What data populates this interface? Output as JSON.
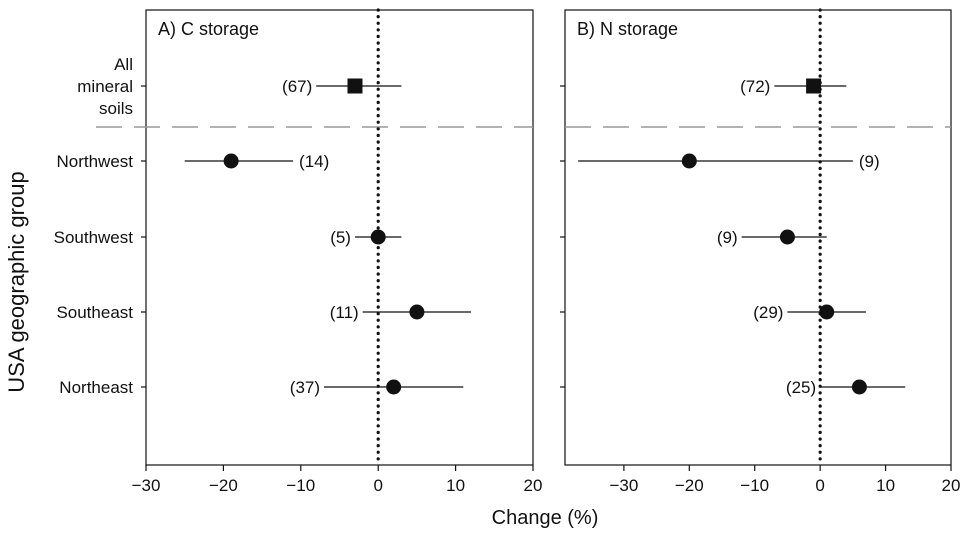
{
  "figure": {
    "ylabel": "USA geographic group",
    "xlabel": "Change (%)"
  },
  "colors": {
    "ink": "#111111",
    "reference_line": "#111111",
    "separator_line": "#999999"
  },
  "chart_data": [
    {
      "type": "scatter",
      "panel_title": "A) C storage",
      "xlim": [
        -30,
        20
      ],
      "x_ticks": [
        "−30",
        "−20",
        "−10",
        "0",
        "10",
        "20"
      ],
      "x_tick_values": [
        -30,
        -20,
        -10,
        0,
        10,
        20
      ],
      "reference_line_x": 0,
      "separator_below_first_row": true,
      "rows": [
        {
          "label_lines": [
            "All",
            "mineral",
            "soils"
          ],
          "mean": -3,
          "ci": [
            -8,
            3
          ],
          "n_label": "(67)",
          "n_side": "left",
          "marker": "square"
        },
        {
          "label_lines": [
            "Northwest"
          ],
          "mean": -19,
          "ci": [
            -25,
            -11
          ],
          "n_label": "(14)",
          "n_side": "right",
          "marker": "circle"
        },
        {
          "label_lines": [
            "Southwest"
          ],
          "mean": 0,
          "ci": [
            -3,
            3
          ],
          "n_label": "(5)",
          "n_side": "left",
          "marker": "circle"
        },
        {
          "label_lines": [
            "Southeast"
          ],
          "mean": 5,
          "ci": [
            -2,
            12
          ],
          "n_label": "(11)",
          "n_side": "left",
          "marker": "circle"
        },
        {
          "label_lines": [
            "Northeast"
          ],
          "mean": 2,
          "ci": [
            -7,
            11
          ],
          "n_label": "(37)",
          "n_side": "left",
          "marker": "circle"
        }
      ]
    },
    {
      "type": "scatter",
      "panel_title": "B) N storage",
      "xlim": [
        -39,
        20
      ],
      "x_ticks": [
        "−30",
        "−20",
        "−10",
        "0",
        "10",
        "20"
      ],
      "x_tick_values": [
        -30,
        -20,
        -10,
        0,
        10,
        20
      ],
      "reference_line_x": 0,
      "separator_below_first_row": true,
      "rows": [
        {
          "label_lines": [
            "All",
            "mineral",
            "soils"
          ],
          "mean": -1,
          "ci": [
            -7,
            4
          ],
          "n_label": "(72)",
          "n_side": "left",
          "marker": "square"
        },
        {
          "label_lines": [
            "Northwest"
          ],
          "mean": -20,
          "ci": [
            -37,
            5
          ],
          "n_label": "(9)",
          "n_side": "right",
          "marker": "circle"
        },
        {
          "label_lines": [
            "Southwest"
          ],
          "mean": -5,
          "ci": [
            -12,
            1
          ],
          "n_label": "(9)",
          "n_side": "left",
          "marker": "circle"
        },
        {
          "label_lines": [
            "Southeast"
          ],
          "mean": 1,
          "ci": [
            -5,
            7
          ],
          "n_label": "(29)",
          "n_side": "left",
          "marker": "circle"
        },
        {
          "label_lines": [
            "Northeast"
          ],
          "mean": 6,
          "ci": [
            0,
            13
          ],
          "n_label": "(25)",
          "n_side": "left",
          "marker": "circle"
        }
      ]
    }
  ]
}
